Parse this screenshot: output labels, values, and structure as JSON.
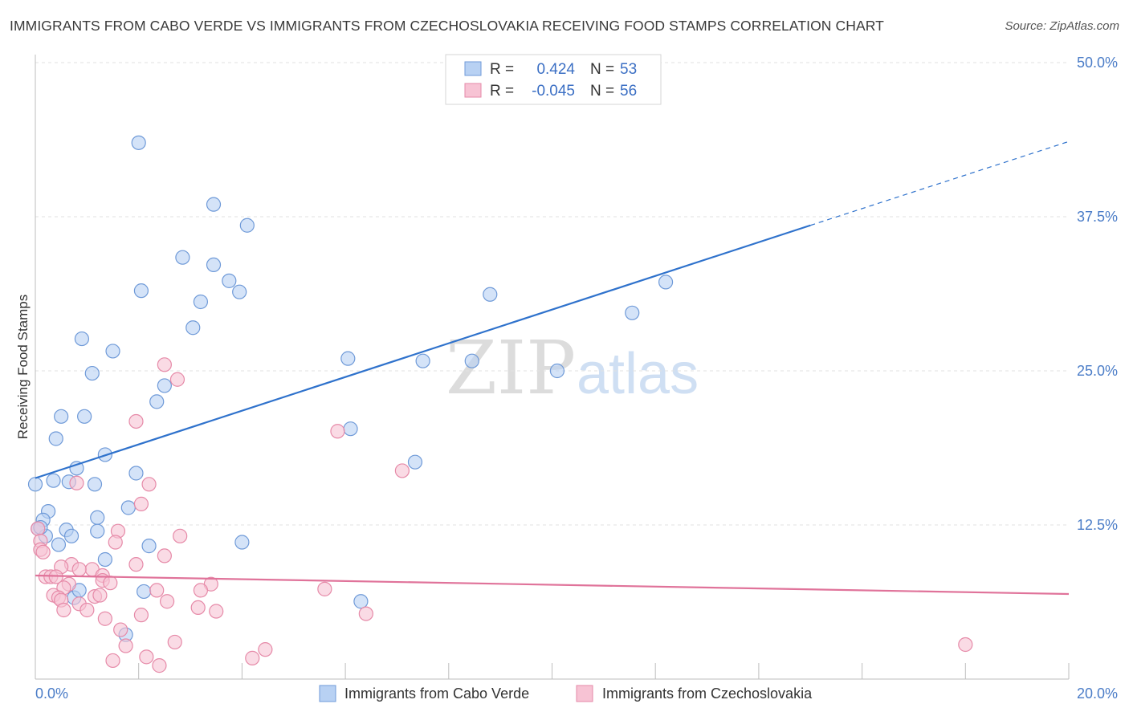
{
  "header": {
    "title": "IMMIGRANTS FROM CABO VERDE VS IMMIGRANTS FROM CZECHOSLOVAKIA RECEIVING FOOD STAMPS CORRELATION CHART",
    "source": "Source: ZipAtlas.com"
  },
  "watermark": {
    "zip": "ZIP",
    "atlas": "atlas"
  },
  "colors": {
    "blue_fill": "#b8d1f3",
    "blue_stroke": "#6f9ad8",
    "blue_line": "#2f72cc",
    "pink_fill": "#f7c3d4",
    "pink_stroke": "#e68aa8",
    "pink_line": "#e0739a"
  },
  "legend_box": {
    "rows": [
      {
        "r_label": "R =",
        "r_value": "0.424",
        "n_label": "N =",
        "n_value": "53"
      },
      {
        "r_label": "R =",
        "r_value": "-0.045",
        "n_label": "N =",
        "n_value": "56"
      }
    ]
  },
  "chart_data": {
    "type": "scatter",
    "xlabel": "",
    "ylabel": "Receiving Food Stamps",
    "xlim": [
      0,
      20
    ],
    "ylim": [
      0,
      50
    ],
    "x_tick_labels": [
      "0.0%",
      "20.0%"
    ],
    "y_ticks": [
      12.5,
      25.0,
      37.5,
      50.0
    ],
    "y_tick_labels": [
      "12.5%",
      "25.0%",
      "37.5%",
      "50.0%"
    ],
    "grid": true,
    "legend_position": "bottom",
    "series": [
      {
        "name": "Immigrants from Cabo Verde",
        "color": "#6f9ad8",
        "trend": {
          "x0": 0,
          "y0": 16.3,
          "x1": 15,
          "y1": 36.8,
          "x_dash_end": 20,
          "y_dash_end": 43.6
        },
        "points": [
          [
            2.0,
            43.5
          ],
          [
            3.45,
            38.5
          ],
          [
            4.1,
            36.8
          ],
          [
            2.85,
            34.2
          ],
          [
            3.45,
            33.6
          ],
          [
            2.05,
            31.5
          ],
          [
            3.75,
            32.3
          ],
          [
            3.95,
            31.4
          ],
          [
            3.2,
            30.6
          ],
          [
            3.05,
            28.5
          ],
          [
            0.9,
            27.6
          ],
          [
            1.5,
            26.6
          ],
          [
            1.1,
            24.8
          ],
          [
            6.05,
            26.0
          ],
          [
            7.5,
            25.8
          ],
          [
            8.45,
            25.8
          ],
          [
            10.1,
            25.0
          ],
          [
            8.8,
            31.2
          ],
          [
            11.55,
            29.7
          ],
          [
            12.2,
            32.2
          ],
          [
            2.5,
            23.8
          ],
          [
            2.35,
            22.5
          ],
          [
            0.5,
            21.3
          ],
          [
            0.95,
            21.3
          ],
          [
            0.4,
            19.5
          ],
          [
            6.1,
            20.3
          ],
          [
            1.35,
            18.2
          ],
          [
            0.8,
            17.1
          ],
          [
            1.95,
            16.7
          ],
          [
            7.35,
            17.6
          ],
          [
            0,
            15.8
          ],
          [
            0.35,
            16.1
          ],
          [
            0.65,
            16.0
          ],
          [
            1.15,
            15.8
          ],
          [
            1.8,
            13.9
          ],
          [
            0.25,
            13.6
          ],
          [
            0.15,
            12.9
          ],
          [
            1.2,
            13.1
          ],
          [
            0.6,
            12.1
          ],
          [
            1.2,
            12.0
          ],
          [
            0.05,
            12.2
          ],
          [
            0.7,
            11.6
          ],
          [
            0.2,
            11.6
          ],
          [
            0.45,
            10.9
          ],
          [
            4.0,
            11.1
          ],
          [
            2.2,
            10.8
          ],
          [
            1.35,
            9.7
          ],
          [
            0.75,
            6.6
          ],
          [
            0.85,
            7.2
          ],
          [
            2.1,
            7.1
          ],
          [
            6.3,
            6.3
          ],
          [
            1.75,
            3.6
          ],
          [
            0.1,
            12.3
          ]
        ]
      },
      {
        "name": "Immigrants from Czechoslovakia",
        "color": "#e68aa8",
        "trend": {
          "x0": 0,
          "y0": 8.4,
          "x1": 20,
          "y1": 6.9
        },
        "points": [
          [
            2.5,
            25.5
          ],
          [
            2.75,
            24.3
          ],
          [
            1.95,
            20.9
          ],
          [
            5.85,
            20.1
          ],
          [
            7.1,
            16.9
          ],
          [
            2.2,
            15.8
          ],
          [
            0.8,
            15.9
          ],
          [
            2.05,
            14.2
          ],
          [
            0.05,
            12.2
          ],
          [
            1.6,
            12.0
          ],
          [
            2.8,
            11.6
          ],
          [
            1.55,
            11.1
          ],
          [
            0.1,
            11.2
          ],
          [
            0.1,
            10.5
          ],
          [
            0.15,
            10.3
          ],
          [
            2.5,
            10.0
          ],
          [
            0.7,
            9.3
          ],
          [
            1.95,
            9.3
          ],
          [
            0.5,
            9.1
          ],
          [
            1.1,
            8.9
          ],
          [
            0.85,
            8.9
          ],
          [
            1.3,
            8.4
          ],
          [
            0.2,
            8.3
          ],
          [
            0.3,
            8.3
          ],
          [
            0.4,
            8.3
          ],
          [
            1.3,
            8.0
          ],
          [
            1.45,
            7.8
          ],
          [
            0.65,
            7.7
          ],
          [
            3.4,
            7.7
          ],
          [
            0.55,
            7.4
          ],
          [
            2.35,
            7.2
          ],
          [
            3.2,
            7.2
          ],
          [
            5.6,
            7.3
          ],
          [
            0.35,
            6.8
          ],
          [
            1.15,
            6.7
          ],
          [
            1.25,
            6.8
          ],
          [
            0.45,
            6.6
          ],
          [
            0.5,
            6.4
          ],
          [
            2.55,
            6.3
          ],
          [
            0.85,
            6.1
          ],
          [
            1.0,
            5.6
          ],
          [
            3.15,
            5.8
          ],
          [
            3.5,
            5.5
          ],
          [
            0.55,
            5.6
          ],
          [
            2.05,
            5.2
          ],
          [
            6.4,
            5.3
          ],
          [
            1.35,
            4.9
          ],
          [
            1.65,
            4.0
          ],
          [
            1.75,
            2.7
          ],
          [
            2.7,
            3.0
          ],
          [
            2.15,
            1.8
          ],
          [
            4.45,
            2.4
          ],
          [
            4.2,
            1.7
          ],
          [
            1.5,
            1.5
          ],
          [
            2.4,
            1.1
          ],
          [
            18.0,
            2.8
          ]
        ]
      }
    ]
  },
  "bottom_legend": {
    "items": [
      "Immigrants from Cabo Verde",
      "Immigrants from Czechoslovakia"
    ]
  }
}
